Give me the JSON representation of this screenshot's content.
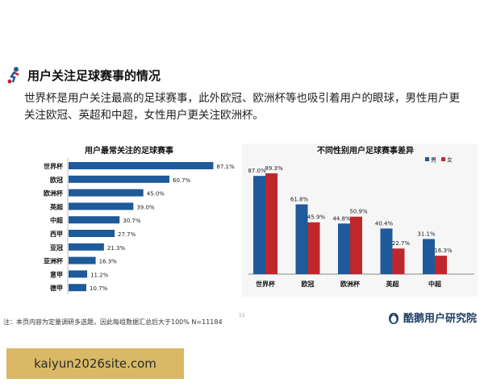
{
  "page": {
    "title": "用户关注足球赛事的情况",
    "description": "世界杯是用户关注最高的足球赛事，此外欧冠、欧洲杯等也吸引着用户的眼球，男性用户更关注欧冠、英超和中超，女性用户更关注欧洲杯。",
    "footnote": "注：本页内容为定量调研多选题，因此每组数据汇总后大于100%  N=11184",
    "page_number": "15",
    "brand": "酷鹅用户研究院",
    "watermark": "kaiyun2026site.com"
  },
  "colors": {
    "blue": "#1f5a9a",
    "red": "#c0272d",
    "grid": "#d9d9d9"
  },
  "chart_data": [
    {
      "type": "bar",
      "orientation": "horizontal",
      "title": "用户最常关注的足球赛事",
      "categories": [
        "世界杯",
        "欧冠",
        "欧洲杯",
        "英超",
        "中超",
        "西甲",
        "亚冠",
        "亚洲杯",
        "意甲",
        "德甲"
      ],
      "values": [
        87.1,
        60.7,
        45.0,
        39.0,
        30.7,
        27.7,
        21.3,
        16.3,
        11.2,
        10.7
      ],
      "value_labels": [
        "87.1%",
        "60.7%",
        "45.0%",
        "39.0%",
        "30.7%",
        "27.7%",
        "21.3%",
        "16.3%",
        "11.2%",
        "10.7%"
      ],
      "color": "#1f5a9a",
      "xlim": [
        0,
        100
      ]
    },
    {
      "type": "bar",
      "orientation": "vertical",
      "title": "不同性别用户足球赛事差异",
      "categories": [
        "世界杯",
        "欧冠",
        "欧洲杯",
        "英超",
        "中超"
      ],
      "series": [
        {
          "name": "男",
          "color": "#1f5a9a",
          "values": [
            87.0,
            61.8,
            44.8,
            40.4,
            31.1
          ],
          "value_labels": [
            "87.0%",
            "61.8%",
            "44.8%",
            "40.4%",
            "31.1%"
          ]
        },
        {
          "name": "女",
          "color": "#c0272d",
          "values": [
            89.3,
            45.9,
            50.9,
            22.7,
            16.3
          ],
          "value_labels": [
            "89.3%",
            "45.9%",
            "50.9%",
            "22.7%",
            "16.3%"
          ]
        }
      ],
      "legend": "top-right",
      "ylim": [
        0,
        100
      ]
    }
  ]
}
